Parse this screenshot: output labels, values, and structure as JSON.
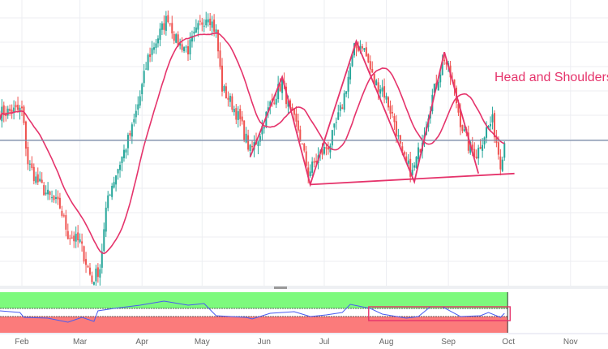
{
  "chart_data": {
    "type": "candlestick",
    "title": "",
    "annotation": "Head and Shoulders",
    "x_tick_labels": [
      "Feb",
      "Mar",
      "Apr",
      "May",
      "Jun",
      "Jul",
      "Aug",
      "Sep",
      "Oct",
      "Nov"
    ],
    "y_axis_shown": false,
    "grid": true,
    "price_anchors": [
      [
        "Jan 21",
        65
      ],
      [
        "Feb 1",
        66
      ],
      [
        "Feb 4",
        47
      ],
      [
        "Feb 8",
        41
      ],
      [
        "Feb 14",
        35
      ],
      [
        "Feb 20",
        31
      ],
      [
        "Feb 24",
        21
      ],
      [
        "Mar 1",
        18
      ],
      [
        "Mar 7",
        4
      ],
      [
        "Mar 11",
        9
      ],
      [
        "Mar 15",
        35
      ],
      [
        "Mar 21",
        47
      ],
      [
        "Mar 27",
        59
      ],
      [
        "Mar 31",
        71
      ],
      [
        "Apr 4",
        85
      ],
      [
        "Apr 10",
        94
      ],
      [
        "Apr 14",
        100
      ],
      [
        "Apr 18",
        91
      ],
      [
        "Apr 24",
        88
      ],
      [
        "Apr 30",
        97
      ],
      [
        "May 4",
        101
      ],
      [
        "May 8",
        94
      ],
      [
        "May 11",
        74
      ],
      [
        "May 16",
        68
      ],
      [
        "May 20",
        62
      ],
      [
        "May 25",
        51
      ],
      [
        "May 29",
        56
      ],
      [
        "Jun 4",
        68
      ],
      [
        "Jun 10",
        76
      ],
      [
        "Jun 14",
        65
      ],
      [
        "Jun 18",
        59
      ],
      [
        "Jun 23",
        43
      ],
      [
        "Jun 28",
        49
      ],
      [
        "Jul 4",
        54
      ],
      [
        "Jul 10",
        68
      ],
      [
        "Jul 16",
        88
      ],
      [
        "Jul 20",
        90
      ],
      [
        "Jul 26",
        76
      ],
      [
        "Jul 30",
        74
      ],
      [
        "Aug 5",
        62
      ],
      [
        "Aug 9",
        49
      ],
      [
        "Aug 14",
        43
      ],
      [
        "Aug 18",
        53
      ],
      [
        "Aug 24",
        71
      ],
      [
        "Aug 30",
        85
      ],
      [
        "Sep 3",
        76
      ],
      [
        "Sep 7",
        62
      ],
      [
        "Sep 11",
        53
      ],
      [
        "Sep 15",
        50
      ],
      [
        "Sep 20",
        59
      ],
      [
        "Sep 23",
        62
      ],
      [
        "Sep 27",
        47
      ],
      [
        "Sep 29",
        54
      ]
    ],
    "moving_average_period": 20,
    "horizontal_level": 55,
    "pattern_lines": {
      "zigzag": [
        [
          "May 25",
          49
        ],
        [
          "Jun 10",
          78
        ],
        [
          "Jun 24",
          39
        ],
        [
          "Jul 17",
          91
        ],
        [
          "Aug 15",
          40
        ],
        [
          "Aug 30",
          87
        ],
        [
          "Sep 16",
          43
        ]
      ],
      "neckline": [
        [
          "Jun 24",
          39
        ],
        [
          "Oct 4",
          43
        ]
      ]
    },
    "oscillator": {
      "upper_zone": 60,
      "lower_zone": 40,
      "values": [
        [
          "Jan 21",
          54
        ],
        [
          "Jan 31",
          50
        ],
        [
          "Feb 2",
          38
        ],
        [
          "Feb 14",
          36
        ],
        [
          "Feb 24",
          26
        ],
        [
          "Mar 2",
          38
        ],
        [
          "Mar 8",
          28
        ],
        [
          "Mar 10",
          54
        ],
        [
          "Mar 18",
          60
        ],
        [
          "Mar 31",
          68
        ],
        [
          "Apr 12",
          78
        ],
        [
          "Apr 24",
          68
        ],
        [
          "May 2",
          72
        ],
        [
          "May 8",
          42
        ],
        [
          "May 23",
          38
        ],
        [
          "May 26",
          34
        ],
        [
          "Jun 4",
          48
        ],
        [
          "Jun 16",
          52
        ],
        [
          "Jun 24",
          40
        ],
        [
          "Jul 2",
          44
        ],
        [
          "Jul 10",
          50
        ],
        [
          "Jul 14",
          70
        ],
        [
          "Jul 24",
          60
        ],
        [
          "Jul 30",
          46
        ],
        [
          "Aug 11",
          36
        ],
        [
          "Aug 17",
          40
        ],
        [
          "Aug 23",
          64
        ],
        [
          "Aug 29",
          64
        ],
        [
          "Sep 7",
          40
        ],
        [
          "Sep 17",
          42
        ],
        [
          "Sep 21",
          50
        ],
        [
          "Sep 27",
          38
        ],
        [
          "Sep 29",
          48
        ]
      ],
      "highlight_box": [
        "Jul 24",
        "Sep 29"
      ]
    },
    "colors": {
      "up": "#26a69a",
      "down": "#ef5350",
      "ma": "#e5336b",
      "pattern": "#e5336b",
      "level": "#7a8aa8",
      "oscillator": "#4a5cf0",
      "zone_high": "#7dfa7d",
      "zone_low": "#fb7b7b"
    }
  }
}
